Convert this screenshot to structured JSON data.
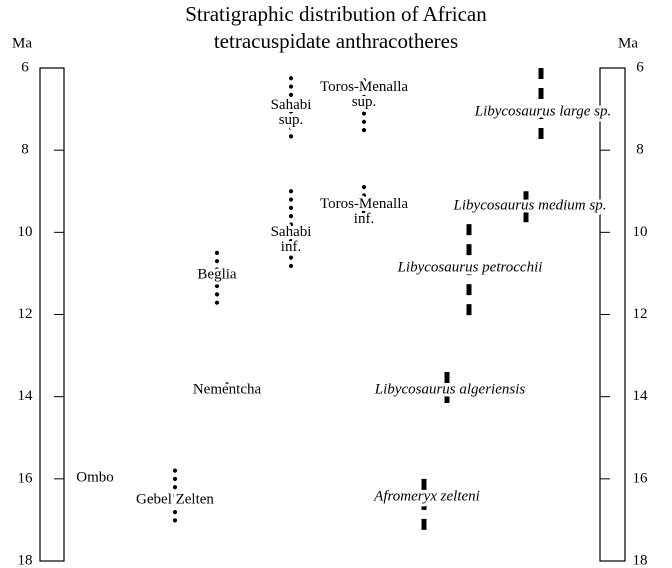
{
  "chart_data": {
    "type": "range",
    "title": [
      "Stratigraphic distribution of African",
      "tetracuspidate anthracotheres"
    ],
    "y_label": "Ma",
    "ylim": [
      6,
      18
    ],
    "yticks": [
      6,
      8,
      10,
      12,
      14,
      16,
      18
    ],
    "localities": [
      {
        "name": [
          "Sahabi",
          "sup."
        ],
        "range": [
          6.25,
          7.75
        ]
      },
      {
        "name": [
          "Toros-Menalla",
          "sup."
        ],
        "range": [
          6.3,
          7.6
        ]
      },
      {
        "name": [
          "Sahabi",
          "inf."
        ],
        "range": [
          9.0,
          11.0
        ]
      },
      {
        "name": [
          "Toros-Menalla",
          "inf."
        ],
        "range": [
          8.9,
          9.9
        ]
      },
      {
        "name": [
          "Beglia"
        ],
        "range": [
          10.5,
          11.9
        ]
      },
      {
        "name": [
          "Nementcha"
        ],
        "range": [
          13.7,
          14.1
        ]
      },
      {
        "name": [
          "Gebel Zelten"
        ],
        "range": [
          15.8,
          17.2
        ]
      }
    ],
    "taxa": [
      {
        "name": "Libycosaurus large sp.",
        "range": [
          6.0,
          7.8
        ]
      },
      {
        "name": "Libycosaurus medium sp.",
        "range": [
          9.0,
          9.9
        ]
      },
      {
        "name": "Libycosaurus petrocchii",
        "range": [
          9.8,
          12.1
        ]
      },
      {
        "name": "Libycosaurus algeriensis",
        "range": [
          13.4,
          14.3
        ]
      },
      {
        "name": "Afromeryx zelteni",
        "range": [
          16.0,
          17.3
        ]
      }
    ],
    "annotations": [
      "Ombo"
    ]
  }
}
